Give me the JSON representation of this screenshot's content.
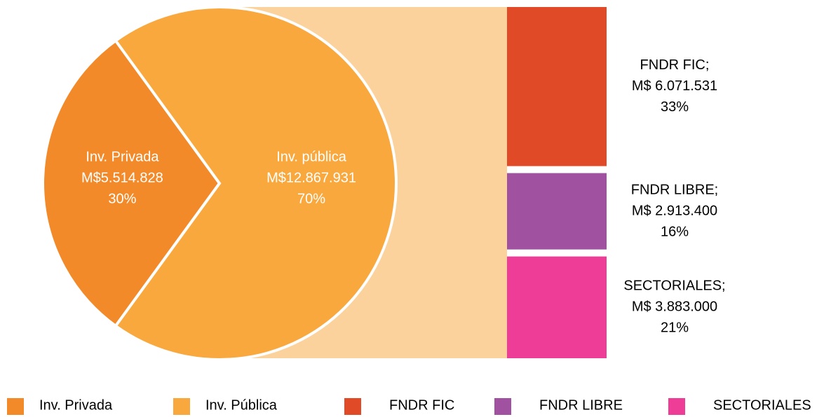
{
  "chart_data": {
    "type": "pie",
    "categories": [
      "Inv. Privada",
      "Inv. pública"
    ],
    "values": [
      5514828,
      12867931
    ],
    "value_labels": [
      "M$5.514.828",
      "M$12.867.931"
    ],
    "percents": [
      30,
      70
    ],
    "percent_labels": [
      "30%",
      "70%"
    ],
    "colors": [
      "#f38a2a",
      "#f9a83e"
    ],
    "breakdown": {
      "type": "bar",
      "categories": [
        "FNDR FIC;",
        "FNDR LIBRE;",
        "SECTORIALES;"
      ],
      "values": [
        6071531,
        2913400,
        3883000
      ],
      "value_labels": [
        "M$ 6.071.531",
        "M$ 2.913.400",
        "M$ 3.883.000"
      ],
      "percents": [
        33,
        16,
        21
      ],
      "percent_labels": [
        "33%",
        "16%",
        "21%"
      ],
      "colors": [
        "#e04a27",
        "#a0519f",
        "#ee3d96"
      ]
    },
    "legend": [
      "Inv. Privada",
      "Inv. Pública",
      "FNDR FIC",
      "FNDR LIBRE",
      "SECTORIALES"
    ]
  }
}
